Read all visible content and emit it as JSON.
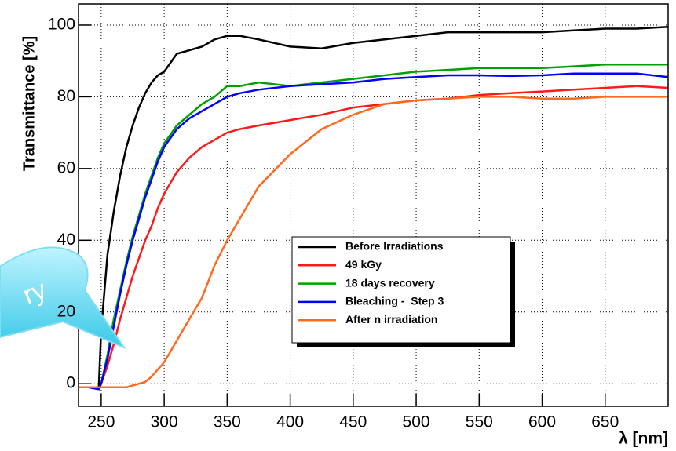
{
  "chart_data": {
    "type": "line",
    "xlabel": "λ [nm]",
    "ylabel": "Transmittance [%]",
    "annotation": "ry",
    "x": [
      232,
      240,
      248,
      250,
      255,
      260,
      265,
      270,
      275,
      280,
      285,
      290,
      295,
      300,
      310,
      320,
      330,
      340,
      350,
      360,
      375,
      400,
      425,
      450,
      475,
      500,
      525,
      550,
      575,
      600,
      625,
      650,
      675,
      700
    ],
    "series": [
      {
        "name": "Before Irradiations",
        "color": "#000000",
        "values": [
          -1,
          -1,
          -1.5,
          15,
          36,
          48,
          58,
          66,
          72,
          77,
          81,
          84,
          86,
          87,
          92,
          93,
          94,
          96,
          97,
          97,
          96,
          94,
          93.5,
          95,
          96,
          97,
          98,
          98,
          98,
          98,
          98.5,
          99,
          99,
          99.5
        ]
      },
      {
        "name": "49 kGy",
        "color": "#ff1a1a",
        "values": [
          -1,
          -1,
          -1.5,
          0,
          5,
          11,
          18,
          24,
          30,
          35,
          40,
          44,
          49,
          53,
          59,
          63,
          66,
          68,
          70,
          71,
          72,
          73.5,
          75,
          77,
          78,
          79,
          79.5,
          80.5,
          81,
          81.5,
          82,
          82.5,
          83,
          82.5
        ]
      },
      {
        "name": "18 days recovery",
        "color": "#00a000",
        "values": [
          -1,
          -1,
          -1.5,
          0,
          8,
          18,
          26,
          34,
          41,
          47,
          53,
          58,
          63,
          67,
          72,
          75,
          78,
          80,
          83,
          83,
          84,
          83,
          84,
          85,
          86,
          87,
          87.5,
          88,
          88,
          88,
          88.5,
          89,
          89,
          89
        ]
      },
      {
        "name": "Bleaching -  Step 3",
        "color": "#0000ff",
        "values": [
          -1,
          -1,
          -1.5,
          0,
          7,
          16,
          25,
          33,
          40,
          46,
          52,
          57,
          62,
          66,
          71,
          74,
          76,
          78,
          80,
          81,
          82,
          83,
          83.5,
          84,
          85,
          85.5,
          86,
          86,
          85.8,
          86,
          86.5,
          86.5,
          86.5,
          85.5
        ]
      },
      {
        "name": "After n irradiation",
        "color": "#ff6a20",
        "values": [
          -1,
          -1,
          -1,
          -1,
          -1,
          -1,
          -1,
          -1,
          -0.5,
          0,
          0.5,
          2,
          4,
          6,
          12,
          18,
          24,
          33,
          40,
          46,
          55,
          64,
          71,
          75,
          78,
          79,
          79.5,
          80,
          80,
          79.5,
          79.5,
          80,
          80,
          80
        ]
      }
    ],
    "xlim": [
      232,
      700
    ],
    "ylim": [
      -6.3,
      105.9
    ],
    "xticks": [
      250,
      300,
      350,
      400,
      450,
      500,
      550,
      600,
      650
    ],
    "yticks": [
      0,
      20,
      40,
      60,
      80,
      100
    ],
    "grid": true
  }
}
